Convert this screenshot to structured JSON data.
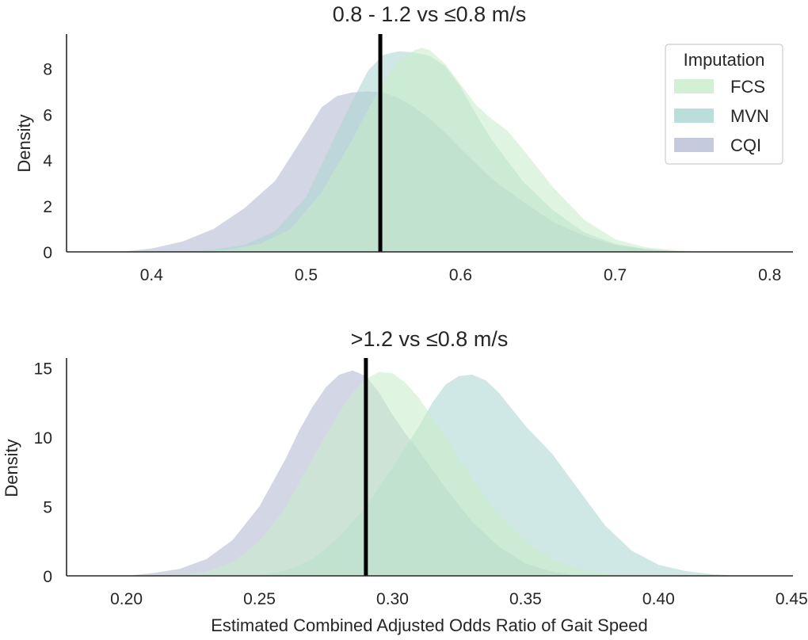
{
  "chart_data": [
    {
      "type": "area",
      "title": "0.8 - 1.2 vs ≤0.8 m/s",
      "xlabel": "",
      "ylabel": "Density",
      "xlim": [
        0.345,
        0.815
      ],
      "ylim": [
        0,
        9.5
      ],
      "xticks": [
        0.4,
        0.5,
        0.6,
        0.7,
        0.8
      ],
      "xtick_labels": [
        "0.4",
        "0.5",
        "0.6",
        "0.7",
        "0.8"
      ],
      "yticks": [
        0,
        2,
        4,
        6,
        8
      ],
      "ytick_labels": [
        "0",
        "2",
        "4",
        "6",
        "8"
      ],
      "reference_line_x": 0.548,
      "series": [
        {
          "name": "CQI",
          "x": [
            0.38,
            0.4,
            0.42,
            0.44,
            0.46,
            0.48,
            0.5,
            0.51,
            0.52,
            0.53,
            0.54,
            0.55,
            0.56,
            0.57,
            0.58,
            0.59,
            0.6,
            0.62,
            0.64,
            0.66,
            0.68,
            0.7,
            0.72,
            0.74,
            0.76
          ],
          "y": [
            0.0,
            0.15,
            0.45,
            1.0,
            1.9,
            3.1,
            5.2,
            6.3,
            6.8,
            6.95,
            7.0,
            6.95,
            6.7,
            6.3,
            5.8,
            5.2,
            4.5,
            3.2,
            2.2,
            1.3,
            0.7,
            0.3,
            0.12,
            0.03,
            0.0
          ]
        },
        {
          "name": "MVN",
          "x": [
            0.42,
            0.44,
            0.46,
            0.48,
            0.5,
            0.52,
            0.53,
            0.54,
            0.55,
            0.56,
            0.57,
            0.58,
            0.59,
            0.6,
            0.61,
            0.62,
            0.64,
            0.66,
            0.68,
            0.7,
            0.72,
            0.74,
            0.76
          ],
          "y": [
            0.0,
            0.1,
            0.3,
            0.9,
            2.4,
            5.2,
            6.6,
            7.9,
            8.6,
            8.75,
            8.7,
            8.55,
            8.1,
            7.2,
            6.0,
            4.9,
            3.1,
            1.8,
            0.85,
            0.35,
            0.12,
            0.03,
            0.0
          ]
        },
        {
          "name": "FCS",
          "x": [
            0.43,
            0.45,
            0.47,
            0.49,
            0.51,
            0.53,
            0.54,
            0.55,
            0.56,
            0.57,
            0.575,
            0.58,
            0.59,
            0.6,
            0.61,
            0.62,
            0.63,
            0.64,
            0.66,
            0.68,
            0.7,
            0.72,
            0.74,
            0.76,
            0.78
          ],
          "y": [
            0.0,
            0.1,
            0.35,
            1.0,
            2.6,
            4.9,
            6.2,
            7.4,
            8.3,
            8.8,
            8.9,
            8.8,
            8.2,
            7.3,
            6.4,
            5.8,
            5.3,
            4.5,
            2.8,
            1.4,
            0.55,
            0.2,
            0.06,
            0.02,
            0.0
          ]
        }
      ]
    },
    {
      "type": "area",
      "title": ">1.2 vs ≤0.8 m/s",
      "xlabel": "Estimated Combined Adjusted Odds Ratio of Gait Speed",
      "ylabel": "Density",
      "xlim": [
        0.1775,
        0.4505
      ],
      "ylim": [
        0,
        15.7
      ],
      "xticks": [
        0.2,
        0.25,
        0.3,
        0.35,
        0.4,
        0.45
      ],
      "xtick_labels": [
        "0.20",
        "0.25",
        "0.30",
        "0.35",
        "0.40",
        "0.45"
      ],
      "yticks": [
        0,
        5,
        10,
        15
      ],
      "ytick_labels": [
        "0",
        "5",
        "10",
        "15"
      ],
      "reference_line_x": 0.29,
      "series": [
        {
          "name": "CQI",
          "x": [
            0.2,
            0.21,
            0.22,
            0.23,
            0.24,
            0.25,
            0.26,
            0.265,
            0.27,
            0.275,
            0.28,
            0.285,
            0.29,
            0.295,
            0.3,
            0.305,
            0.31,
            0.32,
            0.33,
            0.34,
            0.35,
            0.36,
            0.37
          ],
          "y": [
            0.0,
            0.2,
            0.5,
            1.2,
            2.6,
            5.0,
            8.5,
            10.5,
            12.2,
            13.6,
            14.5,
            14.8,
            14.4,
            13.2,
            11.6,
            10.2,
            9.0,
            6.3,
            3.9,
            2.1,
            0.9,
            0.3,
            0.0
          ]
        },
        {
          "name": "MVN",
          "x": [
            0.25,
            0.26,
            0.27,
            0.28,
            0.29,
            0.3,
            0.31,
            0.315,
            0.32,
            0.325,
            0.33,
            0.335,
            0.34,
            0.35,
            0.36,
            0.37,
            0.38,
            0.39,
            0.4,
            0.41,
            0.42,
            0.43
          ],
          "y": [
            0.0,
            0.4,
            1.2,
            2.8,
            5.0,
            7.8,
            10.8,
            12.5,
            13.8,
            14.4,
            14.5,
            14.1,
            13.2,
            10.8,
            8.8,
            6.2,
            3.6,
            1.8,
            0.8,
            0.35,
            0.12,
            0.0
          ]
        },
        {
          "name": "FCS",
          "x": [
            0.22,
            0.23,
            0.24,
            0.25,
            0.26,
            0.27,
            0.28,
            0.285,
            0.29,
            0.295,
            0.3,
            0.305,
            0.31,
            0.32,
            0.33,
            0.34,
            0.35,
            0.36,
            0.37,
            0.38,
            0.39
          ],
          "y": [
            0.0,
            0.3,
            1.0,
            2.5,
            5.0,
            8.5,
            11.8,
            13.2,
            14.2,
            14.7,
            14.6,
            13.9,
            12.8,
            10.0,
            7.0,
            4.4,
            2.5,
            1.2,
            0.5,
            0.15,
            0.0
          ]
        }
      ]
    }
  ],
  "legend": {
    "title": "Imputation",
    "entries": [
      {
        "label": "FCS",
        "color": "#c7ecc8"
      },
      {
        "label": "MVN",
        "color": "#a9d6cf"
      },
      {
        "label": "CQI",
        "color": "#b6bdd4"
      }
    ]
  },
  "colors": {
    "FCS": "#c7ecc8",
    "MVN": "#a9d6cf",
    "CQI": "#b6bdd4",
    "reference_line": "#000000",
    "axis": "#262626"
  }
}
